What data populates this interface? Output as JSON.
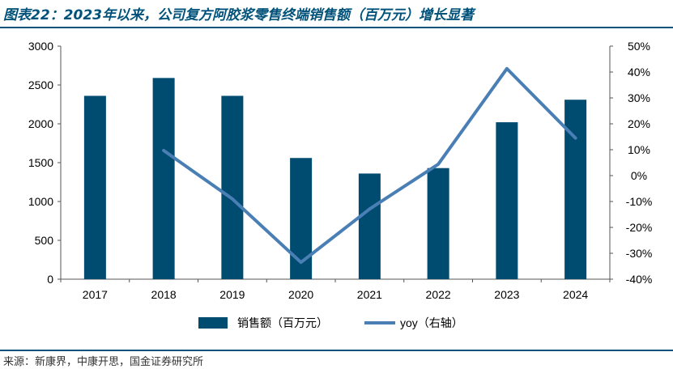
{
  "header": {
    "title": "图表22：2023年以来，公司复方阿胶浆零售终端销售额（百万元）增长显著"
  },
  "footer": {
    "source": "来源：新康界，中康开思，国金证券研究所"
  },
  "chart_data": {
    "type": "bar",
    "categories": [
      "2017",
      "2018",
      "2019",
      "2020",
      "2021",
      "2022",
      "2023",
      "2024"
    ],
    "series": [
      {
        "name": "销售额（百万元）",
        "type": "bar",
        "axis": "left",
        "color": "#004b70",
        "values": [
          2360,
          2590,
          2360,
          1560,
          1360,
          1430,
          2020,
          2310
        ]
      },
      {
        "name": "yoy（右轴）",
        "type": "line",
        "axis": "right",
        "color": "#4a7fb5",
        "values": [
          null,
          9.7,
          -9.0,
          -33.5,
          -12.9,
          4.4,
          41.3,
          14.5
        ]
      }
    ],
    "y_left": {
      "range": [
        0,
        3000
      ],
      "ticks": [
        "0",
        "500",
        "1000",
        "1500",
        "2000",
        "2500",
        "3000"
      ]
    },
    "y_right": {
      "range": [
        -40,
        50
      ],
      "ticks": [
        "-40%",
        "-30%",
        "-20%",
        "-10%",
        "0%",
        "10%",
        "20%",
        "30%",
        "40%",
        "50%"
      ]
    },
    "grid": false,
    "legend": "bottom-center"
  }
}
